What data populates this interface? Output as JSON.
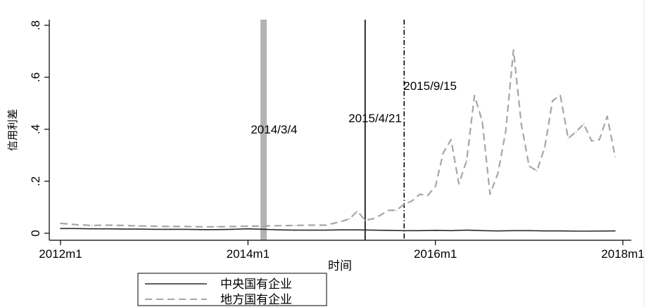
{
  "chart_data": {
    "type": "line",
    "xlabel": "时间",
    "ylabel": "信用利差",
    "x_ticks": [
      "2012m1",
      "2014m1",
      "2016m1",
      "2018m1"
    ],
    "y_ticks": [
      "0",
      ".2",
      ".4",
      ".6",
      ".8"
    ],
    "xlim": [
      "2012m1",
      "2018m1"
    ],
    "ylim": [
      0,
      0.8
    ],
    "grid": false,
    "legend_position": "bottom-left",
    "annotations": [
      {
        "label": "2014/3/4",
        "x": "2014m3",
        "style": "thick-gray-bar"
      },
      {
        "label": "2015/4/21",
        "x": "2015m4",
        "style": "solid"
      },
      {
        "label": "2015/9/15",
        "x": "2015m9",
        "style": "dash-dot"
      }
    ],
    "series": [
      {
        "name": "中央国有企业",
        "line_style": "solid",
        "color": "#2b2b2b",
        "points": [
          [
            "2012m1",
            0.018
          ],
          [
            "2012m3",
            0.018
          ],
          [
            "2012m5",
            0.017
          ],
          [
            "2012m7",
            0.017
          ],
          [
            "2012m9",
            0.016
          ],
          [
            "2012m11",
            0.016
          ],
          [
            "2013m1",
            0.015
          ],
          [
            "2013m3",
            0.015
          ],
          [
            "2013m5",
            0.015
          ],
          [
            "2013m7",
            0.014
          ],
          [
            "2013m9",
            0.014
          ],
          [
            "2013m11",
            0.015
          ],
          [
            "2014m1",
            0.017
          ],
          [
            "2014m3",
            0.015
          ],
          [
            "2014m5",
            0.013
          ],
          [
            "2014m7",
            0.012
          ],
          [
            "2014m9",
            0.012
          ],
          [
            "2014m11",
            0.012
          ],
          [
            "2015m1",
            0.013
          ],
          [
            "2015m3",
            0.013
          ],
          [
            "2015m5",
            0.012
          ],
          [
            "2015m7",
            0.011
          ],
          [
            "2015m9",
            0.01
          ],
          [
            "2015m11",
            0.01
          ],
          [
            "2016m1",
            0.011
          ],
          [
            "2016m3",
            0.01
          ],
          [
            "2016m5",
            0.012
          ],
          [
            "2016m7",
            0.01
          ],
          [
            "2016m9",
            0.009
          ],
          [
            "2016m11",
            0.01
          ],
          [
            "2017m1",
            0.01
          ],
          [
            "2017m3",
            0.009
          ],
          [
            "2017m5",
            0.009
          ],
          [
            "2017m7",
            0.008
          ],
          [
            "2017m9",
            0.008
          ],
          [
            "2017m12",
            0.009
          ]
        ]
      },
      {
        "name": "地方国有企业",
        "line_style": "dashed",
        "color": "#a6a6a6",
        "points": [
          [
            "2012m1",
            0.038
          ],
          [
            "2012m3",
            0.033
          ],
          [
            "2012m5",
            0.03
          ],
          [
            "2012m7",
            0.031
          ],
          [
            "2012m9",
            0.03
          ],
          [
            "2012m11",
            0.028
          ],
          [
            "2013m1",
            0.027
          ],
          [
            "2013m3",
            0.026
          ],
          [
            "2013m5",
            0.026
          ],
          [
            "2013m7",
            0.025
          ],
          [
            "2013m9",
            0.025
          ],
          [
            "2013m11",
            0.026
          ],
          [
            "2014m1",
            0.027
          ],
          [
            "2014m3",
            0.028
          ],
          [
            "2014m5",
            0.029
          ],
          [
            "2014m7",
            0.03
          ],
          [
            "2014m9",
            0.031
          ],
          [
            "2014m11",
            0.031
          ],
          [
            "2015m1",
            0.046
          ],
          [
            "2015m2",
            0.055
          ],
          [
            "2015m3",
            0.085
          ],
          [
            "2015m4",
            0.05
          ],
          [
            "2015m5",
            0.055
          ],
          [
            "2015m6",
            0.07
          ],
          [
            "2015m7",
            0.088
          ],
          [
            "2015m8",
            0.088
          ],
          [
            "2015m9",
            0.112
          ],
          [
            "2015m10",
            0.124
          ],
          [
            "2015m11",
            0.15
          ],
          [
            "2015m12",
            0.145
          ],
          [
            "2016m1",
            0.18
          ],
          [
            "2016m2",
            0.31
          ],
          [
            "2016m3",
            0.36
          ],
          [
            "2016m4",
            0.19
          ],
          [
            "2016m5",
            0.28
          ],
          [
            "2016m6",
            0.53
          ],
          [
            "2016m7",
            0.43
          ],
          [
            "2016m8",
            0.15
          ],
          [
            "2016m9",
            0.23
          ],
          [
            "2016m10",
            0.39
          ],
          [
            "2016m11",
            0.705
          ],
          [
            "2016m12",
            0.42
          ],
          [
            "2017m1",
            0.258
          ],
          [
            "2017m2",
            0.24
          ],
          [
            "2017m3",
            0.33
          ],
          [
            "2017m4",
            0.51
          ],
          [
            "2017m5",
            0.53
          ],
          [
            "2017m6",
            0.365
          ],
          [
            "2017m7",
            0.39
          ],
          [
            "2017m8",
            0.42
          ],
          [
            "2017m9",
            0.355
          ],
          [
            "2017m10",
            0.36
          ],
          [
            "2017m11",
            0.45
          ],
          [
            "2017m12",
            0.295
          ]
        ]
      }
    ]
  }
}
